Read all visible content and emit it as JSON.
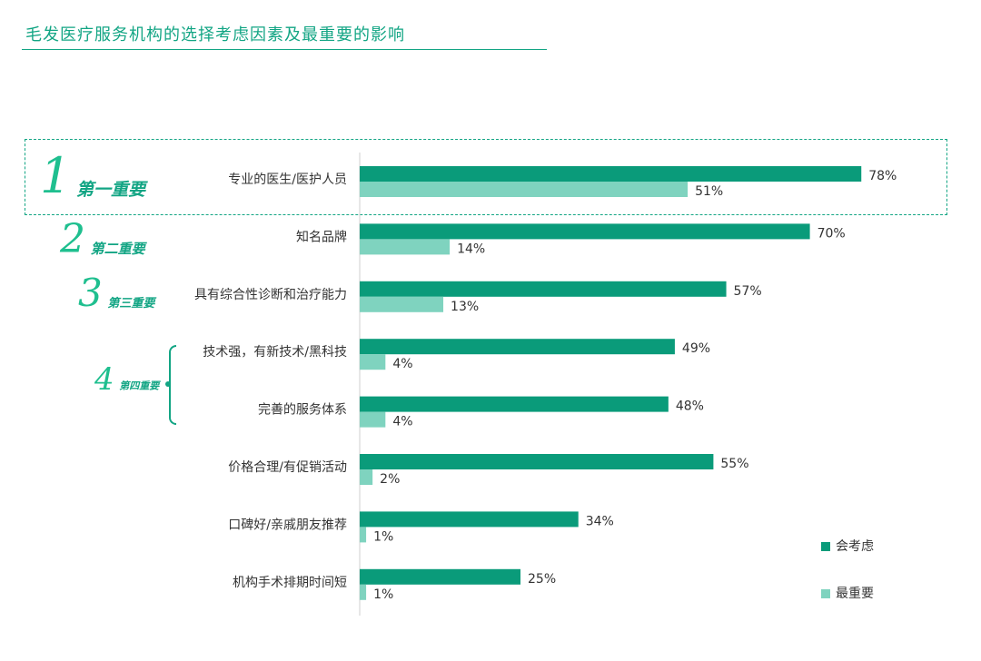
{
  "page": {
    "title": "毛发医疗服务机构的选择考虑因素及最重要的影响"
  },
  "ranks": [
    {
      "num": "1",
      "text": "第一重要"
    },
    {
      "num": "2",
      "text": "第二重要"
    },
    {
      "num": "3",
      "text": "第三重要"
    },
    {
      "num": "4",
      "text": "第四重要"
    }
  ],
  "colors": {
    "consider": "#0a9b7a",
    "most_important": "#7fd3bf",
    "accent": "#13a584"
  },
  "chart_data": {
    "type": "bar",
    "orientation": "horizontal",
    "categories": [
      "专业的医生/医护人员",
      "知名品牌",
      "具有综合性诊断和治疗能力",
      "技术强，有新技术/黑科技",
      "完善的服务体系",
      "价格合理/有促销活动",
      "口碑好/亲戚朋友推荐",
      "机构手术排期时间短"
    ],
    "series": [
      {
        "name": "会考虑",
        "values": [
          78,
          70,
          57,
          49,
          48,
          55,
          34,
          25
        ],
        "labels": [
          "78%",
          "70%",
          "57%",
          "49%",
          "48%",
          "55%",
          "34%",
          "25%"
        ]
      },
      {
        "name": "最重要",
        "values": [
          51,
          14,
          13,
          4,
          4,
          2,
          1,
          1
        ],
        "labels": [
          "51%",
          "14%",
          "13%",
          "4%",
          "4%",
          "2%",
          "1%",
          "1%"
        ]
      }
    ],
    "xlim": [
      0,
      100
    ],
    "legend": "bottom-right",
    "grid": false
  }
}
